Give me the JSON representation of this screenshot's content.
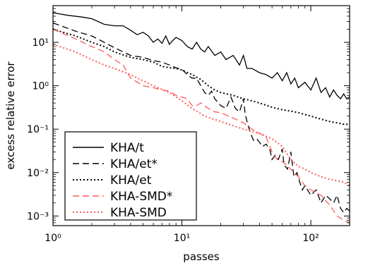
{
  "chart_data": {
    "type": "line",
    "title": "",
    "xlabel": "passes",
    "ylabel": "excess relative error",
    "xscale": "log",
    "yscale": "log",
    "xlim": [
      1,
      200
    ],
    "ylim": [
      0.0006,
      70
    ],
    "grid": false,
    "legend": {
      "placement": "lower-left"
    },
    "x_ticks": [
      {
        "value": 1,
        "label": "10⁰"
      },
      {
        "value": 10,
        "label": "10¹"
      },
      {
        "value": 100,
        "label": "10²"
      }
    ],
    "y_ticks": [
      {
        "value": 0.001,
        "label": "10⁻³"
      },
      {
        "value": 0.01,
        "label": "10⁻²"
      },
      {
        "value": 0.1,
        "label": "10⁻¹"
      },
      {
        "value": 1,
        "label": "10⁰"
      },
      {
        "value": 10,
        "label": "10¹"
      }
    ],
    "series": [
      {
        "name": "KHA/t",
        "color": "#000000",
        "dash": "solid",
        "points": [
          [
            1,
            48
          ],
          [
            1.3,
            42
          ],
          [
            1.7,
            38
          ],
          [
            2,
            35
          ],
          [
            2.5,
            26
          ],
          [
            3,
            24
          ],
          [
            3.5,
            24
          ],
          [
            4,
            19
          ],
          [
            4.5,
            15
          ],
          [
            5,
            17
          ],
          [
            5.5,
            14
          ],
          [
            6,
            10
          ],
          [
            6.5,
            12
          ],
          [
            7,
            9.5
          ],
          [
            7.5,
            14
          ],
          [
            8,
            9
          ],
          [
            8.5,
            11
          ],
          [
            9,
            13
          ],
          [
            10,
            11
          ],
          [
            11,
            8
          ],
          [
            12,
            7
          ],
          [
            13,
            10
          ],
          [
            14,
            7
          ],
          [
            15,
            6
          ],
          [
            16,
            8
          ],
          [
            18,
            5
          ],
          [
            20,
            6
          ],
          [
            22,
            4
          ],
          [
            25,
            5
          ],
          [
            28,
            3
          ],
          [
            30,
            5
          ],
          [
            32,
            2.5
          ],
          [
            35,
            2.5
          ],
          [
            40,
            2
          ],
          [
            45,
            1.8
          ],
          [
            50,
            1.5
          ],
          [
            55,
            2
          ],
          [
            60,
            1.3
          ],
          [
            65,
            2
          ],
          [
            70,
            1.1
          ],
          [
            75,
            1.5
          ],
          [
            80,
            0.9
          ],
          [
            90,
            1.2
          ],
          [
            100,
            0.8
          ],
          [
            110,
            1.5
          ],
          [
            120,
            0.7
          ],
          [
            130,
            0.9
          ],
          [
            140,
            0.55
          ],
          [
            150,
            0.8
          ],
          [
            160,
            0.6
          ],
          [
            170,
            0.5
          ],
          [
            180,
            0.65
          ],
          [
            190,
            0.5
          ],
          [
            200,
            0.55
          ]
        ]
      },
      {
        "name": "KHA/et*",
        "color": "#000000",
        "dash": "dashed",
        "points": [
          [
            1,
            28
          ],
          [
            1.5,
            18
          ],
          [
            2,
            14
          ],
          [
            2.5,
            10
          ],
          [
            3,
            7.5
          ],
          [
            4,
            5
          ],
          [
            5,
            4.5
          ],
          [
            6,
            3.8
          ],
          [
            7,
            3.5
          ],
          [
            8,
            3
          ],
          [
            9,
            2.6
          ],
          [
            10,
            2.4
          ],
          [
            11,
            1.8
          ],
          [
            12,
            1.5
          ],
          [
            13,
            1.5
          ],
          [
            14,
            1
          ],
          [
            15,
            0.7
          ],
          [
            16,
            0.6
          ],
          [
            17,
            0.75
          ],
          [
            18,
            0.5
          ],
          [
            20,
            0.35
          ],
          [
            22,
            0.3
          ],
          [
            24,
            0.55
          ],
          [
            26,
            0.3
          ],
          [
            28,
            0.25
          ],
          [
            30,
            0.5
          ],
          [
            31,
            0.22
          ],
          [
            32,
            0.15
          ],
          [
            34,
            0.08
          ],
          [
            36,
            0.055
          ],
          [
            38,
            0.06
          ],
          [
            40,
            0.05
          ],
          [
            42,
            0.04
          ],
          [
            45,
            0.045
          ],
          [
            48,
            0.035
          ],
          [
            50,
            0.02
          ],
          [
            53,
            0.025
          ],
          [
            56,
            0.02
          ],
          [
            60,
            0.035
          ],
          [
            62,
            0.015
          ],
          [
            66,
            0.012
          ],
          [
            70,
            0.03
          ],
          [
            74,
            0.008
          ],
          [
            78,
            0.01
          ],
          [
            82,
            0.006
          ],
          [
            86,
            0.004
          ],
          [
            90,
            0.005
          ],
          [
            100,
            0.003
          ],
          [
            110,
            0.004
          ],
          [
            120,
            0.002
          ],
          [
            130,
            0.003
          ],
          [
            140,
            0.0025
          ],
          [
            150,
            0.002
          ],
          [
            160,
            0.003
          ],
          [
            170,
            0.0015
          ],
          [
            180,
            0.0012
          ],
          [
            190,
            0.0015
          ],
          [
            200,
            0.0013
          ]
        ]
      },
      {
        "name": "KHA/et",
        "color": "#000000",
        "dash": "dotted",
        "points": [
          [
            1,
            20
          ],
          [
            1.5,
            14
          ],
          [
            2,
            10
          ],
          [
            2.5,
            8
          ],
          [
            3,
            6
          ],
          [
            4,
            4.5
          ],
          [
            5,
            4
          ],
          [
            6,
            3.5
          ],
          [
            7,
            2.8
          ],
          [
            8,
            2.6
          ],
          [
            9,
            2.5
          ],
          [
            10,
            2.3
          ],
          [
            12,
            1.8
          ],
          [
            14,
            1.4
          ],
          [
            16,
            1
          ],
          [
            18,
            0.8
          ],
          [
            20,
            0.7
          ],
          [
            25,
            0.6
          ],
          [
            30,
            0.5
          ],
          [
            35,
            0.45
          ],
          [
            40,
            0.4
          ],
          [
            50,
            0.32
          ],
          [
            60,
            0.28
          ],
          [
            70,
            0.26
          ],
          [
            80,
            0.24
          ],
          [
            100,
            0.2
          ],
          [
            120,
            0.17
          ],
          [
            140,
            0.15
          ],
          [
            160,
            0.14
          ],
          [
            180,
            0.13
          ],
          [
            200,
            0.13
          ]
        ]
      },
      {
        "name": "KHA-SMD*",
        "color": "#ff5a5a",
        "dash": "dashed",
        "points": [
          [
            1,
            20
          ],
          [
            1.5,
            12
          ],
          [
            2,
            8
          ],
          [
            2.5,
            6
          ],
          [
            3,
            4
          ],
          [
            3.5,
            3
          ],
          [
            4,
            1.5
          ],
          [
            5,
            1
          ],
          [
            6,
            0.9
          ],
          [
            7,
            0.8
          ],
          [
            8,
            0.75
          ],
          [
            9,
            0.6
          ],
          [
            10,
            0.55
          ],
          [
            11,
            0.5
          ],
          [
            12,
            0.35
          ],
          [
            13,
            0.35
          ],
          [
            14,
            0.4
          ],
          [
            16,
            0.3
          ],
          [
            18,
            0.25
          ],
          [
            20,
            0.24
          ],
          [
            25,
            0.18
          ],
          [
            30,
            0.14
          ],
          [
            35,
            0.1
          ],
          [
            40,
            0.08
          ],
          [
            45,
            0.065
          ],
          [
            50,
            0.03
          ],
          [
            55,
            0.02
          ],
          [
            60,
            0.018
          ],
          [
            65,
            0.015
          ],
          [
            70,
            0.012
          ],
          [
            80,
            0.008
          ],
          [
            90,
            0.005
          ],
          [
            100,
            0.004
          ],
          [
            120,
            0.003
          ],
          [
            140,
            0.0018
          ],
          [
            160,
            0.001
          ],
          [
            180,
            0.0008
          ],
          [
            200,
            0.0007
          ]
        ]
      },
      {
        "name": "KHA-SMD",
        "color": "#ff5a5a",
        "dash": "dotted",
        "points": [
          [
            1,
            9
          ],
          [
            1.5,
            6
          ],
          [
            2,
            4
          ],
          [
            2.5,
            3
          ],
          [
            3,
            2.5
          ],
          [
            4,
            1.8
          ],
          [
            5,
            1.3
          ],
          [
            6,
            1
          ],
          [
            8,
            0.7
          ],
          [
            10,
            0.45
          ],
          [
            12,
            0.3
          ],
          [
            15,
            0.2
          ],
          [
            20,
            0.15
          ],
          [
            25,
            0.12
          ],
          [
            30,
            0.1
          ],
          [
            40,
            0.08
          ],
          [
            50,
            0.06
          ],
          [
            60,
            0.04
          ],
          [
            70,
            0.02
          ],
          [
            80,
            0.014
          ],
          [
            90,
            0.012
          ],
          [
            100,
            0.01
          ],
          [
            120,
            0.008
          ],
          [
            140,
            0.007
          ],
          [
            160,
            0.0065
          ],
          [
            180,
            0.006
          ],
          [
            200,
            0.005
          ]
        ]
      }
    ]
  }
}
